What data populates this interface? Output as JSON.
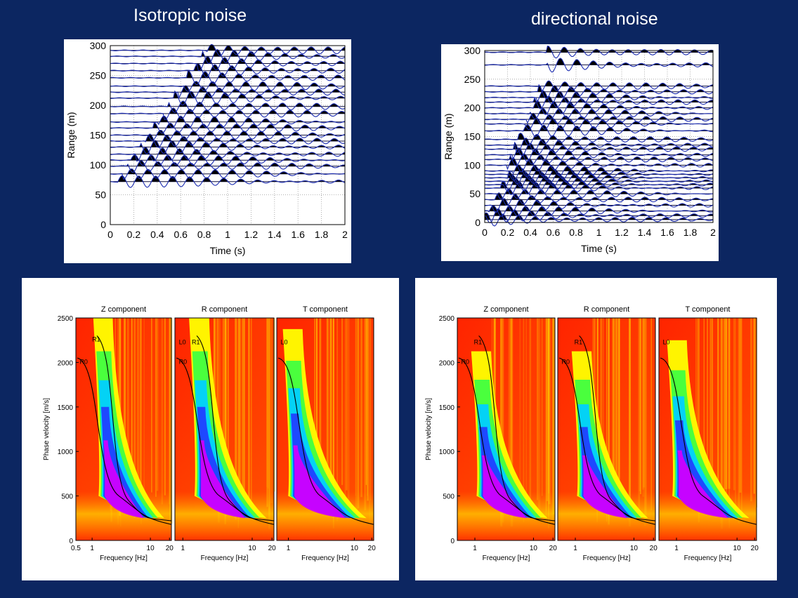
{
  "titles": {
    "left": "Isotropic noise",
    "right": "directional noise"
  },
  "colors": {
    "background": "#0c2661",
    "trace_fill": "#000000",
    "trace_line": "#1a2bb0",
    "spectrum_hot": "#ee2a00"
  },
  "chart_data": [
    {
      "id": "isotropic-gather",
      "type": "line",
      "title": "",
      "xlabel": "Time (s)",
      "ylabel": "Range (m)",
      "xlim": [
        0,
        2
      ],
      "ylim": [
        0,
        300
      ],
      "xticks": [
        "0",
        "0.2",
        "0.4",
        "0.6",
        "0.8",
        "1",
        "1.2",
        "1.4",
        "1.6",
        "1.8",
        "2"
      ],
      "yticks": [
        "0",
        "50",
        "100",
        "150",
        "200",
        "250",
        "300"
      ],
      "grid": true,
      "trace_offsets": [
        72,
        85,
        98,
        108,
        118,
        130,
        140,
        150,
        162,
        172,
        186,
        198,
        212,
        222,
        232,
        246,
        258,
        270,
        282,
        292
      ]
    },
    {
      "id": "directional-gather",
      "type": "line",
      "title": "",
      "xlabel": "Time (s)",
      "ylabel": "Range (m)",
      "xlim": [
        0,
        2
      ],
      "ylim": [
        0,
        300
      ],
      "xticks": [
        "0",
        "0.2",
        "0.4",
        "0.6",
        "0.8",
        "1",
        "1.2",
        "1.4",
        "1.6",
        "1.8",
        "2"
      ],
      "yticks": [
        "0",
        "50",
        "100",
        "150",
        "200",
        "250",
        "300"
      ],
      "grid": true,
      "trace_offsets": [
        5,
        12,
        20,
        30,
        40,
        50,
        60,
        66,
        72,
        78,
        84,
        90,
        100,
        110,
        118,
        128,
        135,
        145,
        160,
        172,
        180,
        190,
        200,
        210,
        218,
        228,
        238,
        275,
        297
      ]
    },
    {
      "id": "isotropic-dispersion",
      "type": "heatmap",
      "ylabel": "Phase velocity [m/s]",
      "ylim": [
        0,
        2500
      ],
      "yticks": [
        "0",
        "500",
        "1000",
        "1500",
        "2000",
        "2500"
      ],
      "panels": [
        {
          "title": "Z component",
          "xlabel": "Frequency [Hz]",
          "xticks": [
            "0.5",
            "1",
            "10",
            "20"
          ],
          "modes": [
            "R0",
            "R1"
          ]
        },
        {
          "title": "R component",
          "xlabel": "Frequency [Hz]",
          "xticks": [
            "1",
            "10",
            "20"
          ],
          "modes": [
            "L0",
            "R0",
            "R1"
          ]
        },
        {
          "title": "T component",
          "xlabel": "Frequency [Hz]",
          "xticks": [
            "1",
            "10",
            "20"
          ],
          "modes": [
            "L0"
          ]
        }
      ]
    },
    {
      "id": "directional-dispersion",
      "type": "heatmap",
      "ylabel": "Phase velocity [m/s]",
      "ylim": [
        0,
        2500
      ],
      "yticks": [
        "0",
        "500",
        "1000",
        "1500",
        "2000",
        "2500"
      ],
      "panels": [
        {
          "title": "Z component",
          "xlabel": "Frequency [Hz]",
          "xticks": [
            "1",
            "10",
            "20"
          ],
          "modes": [
            "R0",
            "R1"
          ]
        },
        {
          "title": "R component",
          "xlabel": "Frequency [Hz]",
          "xticks": [
            "1",
            "10",
            "20"
          ],
          "modes": [
            "R0",
            "R1"
          ]
        },
        {
          "title": "T component",
          "xlabel": "Frequency [Hz]",
          "xticks": [
            "1",
            "10",
            "20"
          ],
          "modes": [
            "L0"
          ]
        }
      ]
    }
  ]
}
